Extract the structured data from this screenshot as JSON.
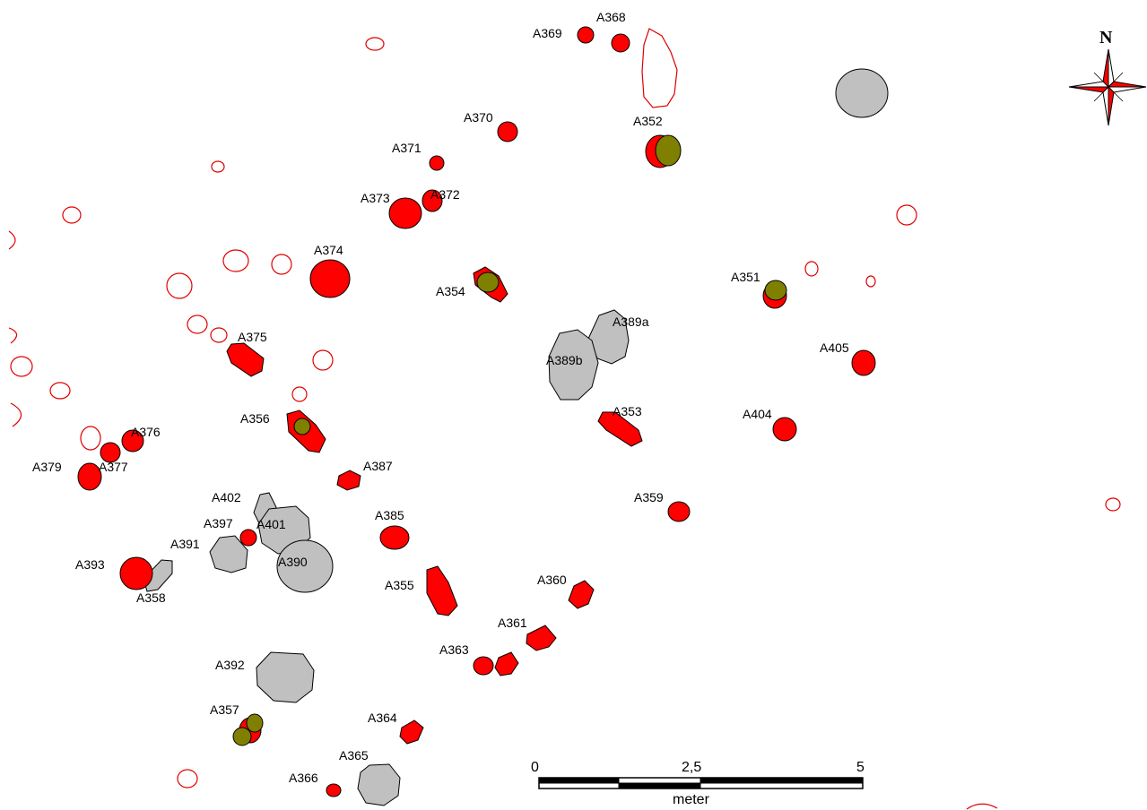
{
  "features": [
    {
      "id": "A368"
    },
    {
      "id": "A369"
    },
    {
      "id": "A370"
    },
    {
      "id": "A371"
    },
    {
      "id": "A372"
    },
    {
      "id": "A373"
    },
    {
      "id": "A374"
    },
    {
      "id": "A352"
    },
    {
      "id": "A354"
    },
    {
      "id": "A351"
    },
    {
      "id": "A389a"
    },
    {
      "id": "A389b"
    },
    {
      "id": "A375"
    },
    {
      "id": "A405"
    },
    {
      "id": "A356"
    },
    {
      "id": "A353"
    },
    {
      "id": "A404"
    },
    {
      "id": "A376"
    },
    {
      "id": "A377"
    },
    {
      "id": "A379"
    },
    {
      "id": "A387"
    },
    {
      "id": "A402"
    },
    {
      "id": "A359"
    },
    {
      "id": "A397"
    },
    {
      "id": "A401"
    },
    {
      "id": "A385"
    },
    {
      "id": "A391"
    },
    {
      "id": "A390"
    },
    {
      "id": "A393"
    },
    {
      "id": "A358"
    },
    {
      "id": "A355"
    },
    {
      "id": "A360"
    },
    {
      "id": "A361"
    },
    {
      "id": "A363"
    },
    {
      "id": "A392"
    },
    {
      "id": "A357"
    },
    {
      "id": "A364"
    },
    {
      "id": "A365"
    },
    {
      "id": "A366"
    }
  ],
  "north_arrow": {
    "label": "N"
  },
  "scale_bar": {
    "ticks": [
      "0",
      "2,5",
      "5"
    ],
    "unit": "meter"
  },
  "colors": {
    "red": "#ff0000",
    "olive": "#808000",
    "grey": "#c0c0c0",
    "outline": "#e00000"
  }
}
